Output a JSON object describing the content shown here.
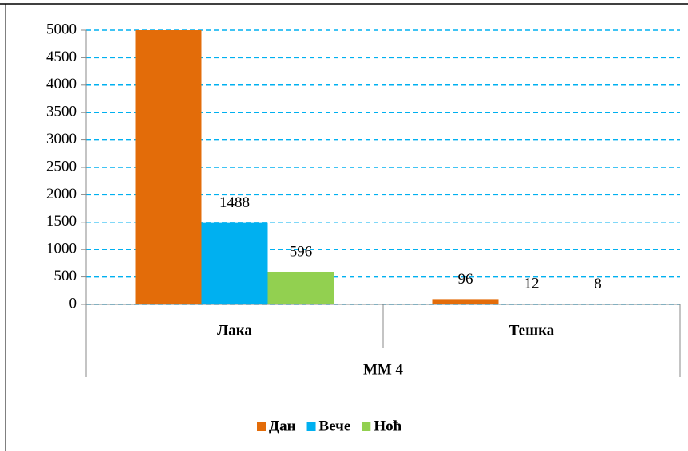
{
  "chart_data": {
    "type": "bar",
    "categories": [
      "Лака",
      "Тешка"
    ],
    "group_label": "MM 4",
    "series": [
      {
        "name": "Дан",
        "color": "#e36c09",
        "values": [
          5000,
          96
        ],
        "value_labels": [
          null,
          "96"
        ]
      },
      {
        "name": "Вече",
        "color": "#00b0f0",
        "values": [
          1488,
          12
        ],
        "value_labels": [
          "1488",
          "12"
        ]
      },
      {
        "name": "Ноћ",
        "color": "#92d050",
        "values": [
          596,
          8
        ],
        "value_labels": [
          "596",
          "8"
        ]
      }
    ],
    "ylim": [
      0,
      5000
    ],
    "yticks": [
      0,
      500,
      1000,
      1500,
      2000,
      2500,
      3000,
      3500,
      4000,
      4500,
      5000
    ],
    "grid": true,
    "legend": "bottom"
  }
}
